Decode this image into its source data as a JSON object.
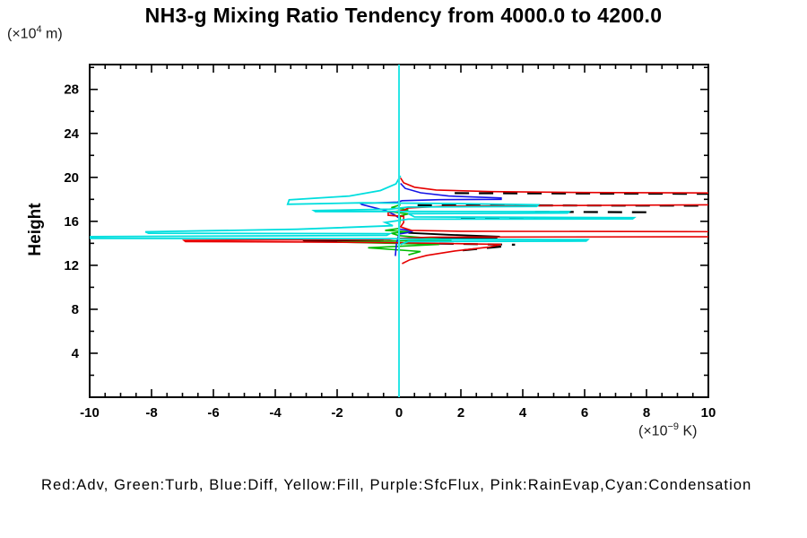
{
  "title": "NH3-g Mixing Ratio Tendency from 4000.0 to 4200.0",
  "y_axis_label": "Height",
  "units": {
    "y": {
      "pre": "(×10",
      "sup": "4",
      "post": " m)"
    },
    "x": {
      "pre": "(×10",
      "sup": "−9",
      "post": " K)"
    }
  },
  "legend": {
    "text": "Red:Adv, Green:Turb, Blue:Diff, Yellow:Fill, Purple:SfcFlux, Pink:RainEvap,Cyan:Condensation"
  },
  "chart_data": {
    "type": "line",
    "title": "NH3-g Mixing Ratio Tendency from 4000.0 to 4200.0",
    "xlabel": "(×10−9 K)",
    "ylabel": "Height (×104 m)",
    "orientation": "vertical-profile (x=tendency value, y=height)",
    "x_range": [
      -10,
      10
    ],
    "y_range": [
      0,
      30.26
    ],
    "x_tick_labels": [
      -10,
      -8,
      -6,
      -4,
      -2,
      0,
      2,
      4,
      6,
      8,
      10
    ],
    "x_minor_step": 0.5,
    "y_tick_labels": [
      4,
      8,
      12,
      16,
      20,
      24,
      28
    ],
    "y_minor_step": 2,
    "grid": false,
    "legend_position": "bottom-text-line",
    "zero_reference_line": {
      "x": 0,
      "color": "#2ae6e6"
    },
    "axis_color": "#000000",
    "series": [
      {
        "name": "Fill",
        "legend_color_word": "Yellow",
        "color": "#ffff00",
        "width": 1.6,
        "dash": null,
        "segments": [
          [
            [
              0,
              19.0
            ],
            [
              0,
              12.5
            ]
          ]
        ]
      },
      {
        "name": "SfcFlux",
        "legend_color_word": "Purple",
        "color": "#a020f0",
        "width": 1.6,
        "dash": null,
        "segments": [
          [
            [
              0,
              19.0
            ],
            [
              0,
              12.5
            ]
          ]
        ]
      },
      {
        "name": "RainEvap",
        "legend_color_word": "Pink",
        "color": "#ffb6c1",
        "width": 1.6,
        "dash": null,
        "segments": [
          [
            [
              0,
              19.0
            ],
            [
              0,
              12.5
            ]
          ]
        ]
      },
      {
        "name": "unlabeled-total",
        "legend_color_word": "Black",
        "color": "#000000",
        "width": 2.2,
        "dash": [
          16,
          11
        ],
        "segments": [
          [
            [
              1.8,
              18.56
            ],
            [
              10.3,
              18.5
            ]
          ],
          [
            [
              0.6,
              17.46
            ],
            [
              10.3,
              17.42
            ]
          ],
          [
            [
              4.4,
              16.87
            ],
            [
              8.0,
              16.83
            ]
          ],
          [
            [
              2.0,
              16.33
            ],
            [
              7.5,
              16.28
            ]
          ],
          [
            [
              1.3,
              13.97
            ],
            [
              3.75,
              13.87
            ]
          ],
          [
            [
              3.3,
              13.7
            ],
            [
              1.9,
              13.32
            ]
          ]
        ]
      },
      {
        "name": "unlabeled-total-solid",
        "legend_color_word": "Black",
        "color": "#000000",
        "width": 1.8,
        "dash": null,
        "segments": [
          [
            [
              0.3,
              14.95
            ],
            [
              1.6,
              14.78
            ],
            [
              3.2,
              14.62
            ],
            [
              3.15,
              14.5
            ],
            [
              0.4,
              14.44
            ]
          ],
          [
            [
              -0.5,
              14.33
            ],
            [
              -3.1,
              14.3
            ],
            [
              -3.05,
              14.2
            ],
            [
              -0.6,
              14.17
            ]
          ]
        ]
      },
      {
        "name": "Turb",
        "legend_color_word": "Green",
        "color": "#00bb00",
        "width": 1.6,
        "dash": null,
        "segments": [
          [
            [
              0.05,
              17.5
            ],
            [
              -0.25,
              17.25
            ],
            [
              0.3,
              17.05
            ],
            [
              -0.2,
              16.85
            ],
            [
              0.3,
              16.68
            ],
            [
              0.05,
              16.5
            ],
            [
              0.0,
              15.35
            ],
            [
              -0.45,
              15.18
            ],
            [
              0.35,
              15.05
            ],
            [
              -0.25,
              14.92
            ],
            [
              0.0,
              14.7
            ],
            [
              1.7,
              14.3
            ],
            [
              -2.0,
              14.12
            ],
            [
              1.3,
              13.9
            ],
            [
              -1.0,
              13.6
            ],
            [
              0.7,
              13.25
            ],
            [
              0.3,
              12.95
            ]
          ]
        ]
      },
      {
        "name": "Diff",
        "legend_color_word": "Blue",
        "color": "#1414e6",
        "width": 1.6,
        "dash": null,
        "segments": [
          [
            [
              0.05,
              19.45
            ],
            [
              0.2,
              19.0
            ],
            [
              0.7,
              18.6
            ],
            [
              1.6,
              18.3
            ],
            [
              3.3,
              18.12
            ],
            [
              3.3,
              18.0
            ],
            [
              1.3,
              17.97
            ],
            [
              0.1,
              17.88
            ],
            [
              -0.05,
              17.75
            ],
            [
              -1.25,
              17.63
            ],
            [
              -1.2,
              17.52
            ],
            [
              -0.45,
              17.0
            ],
            [
              -0.15,
              16.6
            ],
            [
              0.0,
              16.3
            ],
            [
              0.0,
              15.3
            ],
            [
              0.45,
              15.12
            ],
            [
              0.3,
              14.98
            ],
            [
              0.0,
              14.85
            ],
            [
              -0.08,
              14.0
            ],
            [
              -0.1,
              13.5
            ],
            [
              -0.12,
              12.85
            ]
          ]
        ]
      },
      {
        "name": "Adv",
        "legend_color_word": "Red",
        "color": "#e60000",
        "width": 1.6,
        "dash": null,
        "segments": [
          [
            [
              0.05,
              19.95
            ],
            [
              0.15,
              19.5
            ],
            [
              0.5,
              19.1
            ],
            [
              1.2,
              18.85
            ],
            [
              3.0,
              18.7
            ],
            [
              6.0,
              18.62
            ],
            [
              10.3,
              18.58
            ],
            [
              10.3,
              17.5
            ],
            [
              1.5,
              17.38
            ],
            [
              0.3,
              17.22
            ],
            [
              0.15,
              17.0
            ],
            [
              -0.35,
              16.8
            ],
            [
              -0.35,
              16.55
            ],
            [
              0.15,
              16.45
            ],
            [
              0.15,
              15.9
            ],
            [
              0.05,
              15.5
            ],
            [
              0.4,
              15.18
            ],
            [
              2.0,
              15.1
            ],
            [
              10.3,
              15.06
            ],
            [
              10.3,
              14.6
            ],
            [
              1.0,
              14.56
            ],
            [
              0.0,
              14.45
            ],
            [
              -0.3,
              14.35
            ],
            [
              -6.95,
              14.27
            ],
            [
              -6.9,
              14.16
            ],
            [
              -3.0,
              14.12
            ],
            [
              -0.3,
              14.06
            ],
            [
              1.6,
              13.98
            ],
            [
              3.3,
              13.9
            ],
            [
              2.9,
              13.65
            ],
            [
              1.8,
              13.3
            ],
            [
              0.9,
              12.9
            ],
            [
              0.35,
              12.5
            ],
            [
              0.1,
              12.15
            ]
          ]
        ]
      },
      {
        "name": "Condensation",
        "legend_color_word": "Cyan",
        "color": "#00dede",
        "width": 1.8,
        "dash": null,
        "segments": [
          [
            [
              0.05,
              20.15
            ],
            [
              -0.1,
              19.4
            ],
            [
              -0.6,
              18.8
            ],
            [
              -1.6,
              18.3
            ],
            [
              -3.55,
              17.95
            ],
            [
              -3.6,
              17.55
            ],
            [
              -1.2,
              17.68
            ],
            [
              1.8,
              17.62
            ],
            [
              4.5,
              17.5
            ],
            [
              4.45,
              17.36
            ],
            [
              0.3,
              17.3
            ],
            [
              -0.3,
              17.1
            ],
            [
              -2.75,
              16.98
            ],
            [
              -2.7,
              16.88
            ],
            [
              0.5,
              16.9
            ],
            [
              5.5,
              16.88
            ],
            [
              5.45,
              16.75
            ],
            [
              0.3,
              16.7
            ],
            [
              0.5,
              16.4
            ],
            [
              7.6,
              16.33
            ],
            [
              7.55,
              16.22
            ],
            [
              0.3,
              16.2
            ],
            [
              -0.45,
              15.9
            ],
            [
              -0.2,
              15.6
            ],
            [
              -3.3,
              15.28
            ],
            [
              -8.2,
              15.05
            ],
            [
              -8.1,
              14.92
            ],
            [
              -0.3,
              14.88
            ],
            [
              -0.4,
              14.72
            ],
            [
              -10.3,
              14.6
            ],
            [
              -10.3,
              14.45
            ],
            [
              -0.3,
              14.42
            ],
            [
              0.5,
              14.38
            ],
            [
              6.1,
              14.33
            ],
            [
              6.05,
              14.2
            ],
            [
              0.3,
              14.17
            ],
            [
              0.05,
              13.9
            ]
          ]
        ]
      }
    ]
  }
}
